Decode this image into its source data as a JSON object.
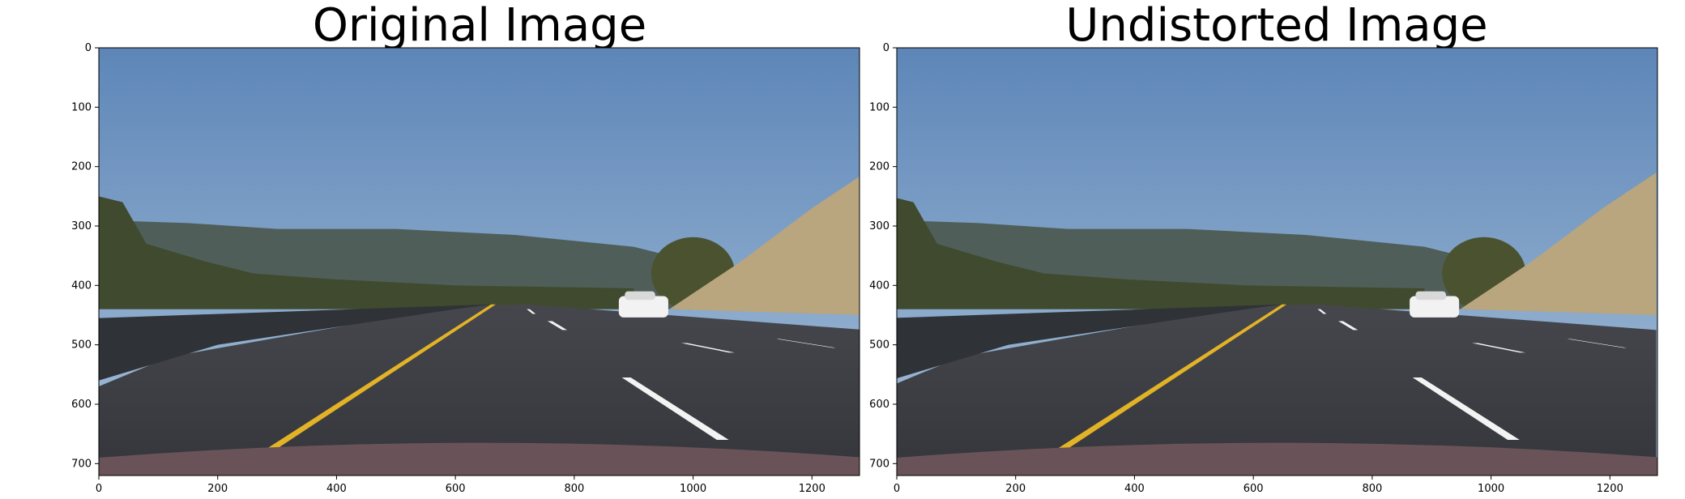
{
  "figure": {
    "panels": [
      {
        "id": "original",
        "title": "Original Image",
        "x_ticks": [
          "0",
          "200",
          "400",
          "600",
          "800",
          "1000",
          "1200"
        ],
        "y_ticks": [
          "0",
          "100",
          "200",
          "300",
          "400",
          "500",
          "600",
          "700"
        ],
        "image_kind": "photo of highway lane with white car, distorted"
      },
      {
        "id": "undistorted",
        "title": "Undistorted Image",
        "x_ticks": [
          "0",
          "200",
          "400",
          "600",
          "800",
          "1000",
          "1200"
        ],
        "y_ticks": [
          "0",
          "100",
          "200",
          "300",
          "400",
          "500",
          "600",
          "700"
        ],
        "image_kind": "photo of highway lane with white car, undistorted"
      }
    ],
    "x_range": [
      0,
      1280
    ],
    "y_range": [
      0,
      720
    ],
    "colors": {
      "sky_top": "#5d86b8",
      "sky_bottom": "#a7c0d8",
      "hills": "#4f5e58",
      "trees": "#3f4a2e",
      "dry_hill": "#b9a57e",
      "road": "#34363c",
      "barrier": "#2f3236",
      "yellow_line": "#e2b326",
      "white_line": "#f3f3f3",
      "hood": "#6a5358"
    }
  }
}
